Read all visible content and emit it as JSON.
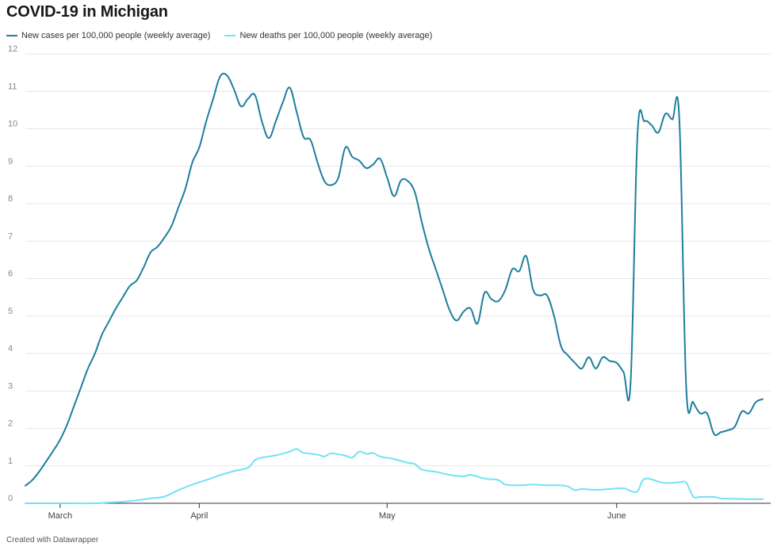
{
  "title": "COVID-19 in Michigan",
  "credit": "Created with Datawrapper",
  "chart_data": {
    "type": "line",
    "title": "COVID-19 in Michigan",
    "xlabel": "",
    "ylabel": "",
    "ylim": [
      0,
      12
    ],
    "yticks": [
      0,
      1,
      2,
      3,
      4,
      5,
      6,
      7,
      8,
      9,
      10,
      11,
      12
    ],
    "x_range": [
      0,
      101
    ],
    "xticks": [
      {
        "label": "March",
        "x": 5
      },
      {
        "label": "April",
        "x": 25
      },
      {
        "label": "May",
        "x": 52
      },
      {
        "label": "June",
        "x": 85
      }
    ],
    "grid": "horizontal",
    "legend": "top-left",
    "series": [
      {
        "name": "New cases per 100,000 people (weekly average)",
        "color": "#1d7f9c",
        "points": [
          [
            0,
            0.47
          ],
          [
            1,
            0.62
          ],
          [
            2,
            0.85
          ],
          [
            3,
            1.12
          ],
          [
            4,
            1.4
          ],
          [
            5,
            1.7
          ],
          [
            6,
            2.1
          ],
          [
            7,
            2.6
          ],
          [
            8,
            3.1
          ],
          [
            9,
            3.6
          ],
          [
            10,
            4.0
          ],
          [
            11,
            4.5
          ],
          [
            12,
            4.85
          ],
          [
            13,
            5.2
          ],
          [
            14,
            5.5
          ],
          [
            15,
            5.8
          ],
          [
            16,
            5.95
          ],
          [
            17,
            6.3
          ],
          [
            18,
            6.7
          ],
          [
            19,
            6.85
          ],
          [
            20,
            7.1
          ],
          [
            21,
            7.4
          ],
          [
            22,
            7.9
          ],
          [
            23,
            8.4
          ],
          [
            24,
            9.1
          ],
          [
            25,
            9.5
          ],
          [
            26,
            10.2
          ],
          [
            27,
            10.8
          ],
          [
            28,
            11.4
          ],
          [
            29,
            11.42
          ],
          [
            30,
            11.05
          ],
          [
            31,
            10.6
          ],
          [
            32,
            10.8
          ],
          [
            33,
            10.9
          ],
          [
            34,
            10.2
          ],
          [
            35,
            9.75
          ],
          [
            36,
            10.2
          ],
          [
            37,
            10.7
          ],
          [
            38,
            11.1
          ],
          [
            39,
            10.45
          ],
          [
            40,
            9.78
          ],
          [
            41,
            9.7
          ],
          [
            42,
            9.1
          ],
          [
            43,
            8.6
          ],
          [
            44,
            8.5
          ],
          [
            45,
            8.7
          ],
          [
            46,
            9.5
          ],
          [
            47,
            9.25
          ],
          [
            48,
            9.15
          ],
          [
            49,
            8.95
          ],
          [
            50,
            9.05
          ],
          [
            51,
            9.2
          ],
          [
            52,
            8.7
          ],
          [
            53,
            8.2
          ],
          [
            54,
            8.62
          ],
          [
            55,
            8.6
          ],
          [
            56,
            8.3
          ],
          [
            57,
            7.5
          ],
          [
            58,
            6.8
          ],
          [
            59,
            6.25
          ],
          [
            60,
            5.7
          ],
          [
            61,
            5.15
          ],
          [
            62,
            4.88
          ],
          [
            63,
            5.12
          ],
          [
            64,
            5.2
          ],
          [
            65,
            4.8
          ],
          [
            66,
            5.62
          ],
          [
            67,
            5.45
          ],
          [
            68,
            5.4
          ],
          [
            69,
            5.7
          ],
          [
            70,
            6.25
          ],
          [
            71,
            6.2
          ],
          [
            72,
            6.6
          ],
          [
            73,
            5.7
          ],
          [
            74,
            5.55
          ],
          [
            75,
            5.55
          ],
          [
            76,
            5.0
          ],
          [
            77,
            4.2
          ],
          [
            78,
            3.95
          ],
          [
            79,
            3.75
          ],
          [
            80,
            3.6
          ],
          [
            81,
            3.9
          ],
          [
            82,
            3.6
          ],
          [
            83,
            3.9
          ],
          [
            84,
            3.8
          ],
          [
            85,
            3.75
          ],
          [
            86,
            3.5
          ],
          [
            87,
            3.2
          ],
          [
            88,
            9.85
          ],
          [
            89,
            10.2
          ],
          [
            90,
            10.1
          ],
          [
            91,
            9.9
          ],
          [
            92,
            10.4
          ],
          [
            93,
            10.25
          ],
          [
            94,
            10.3
          ],
          [
            95,
            3.1
          ],
          [
            96,
            2.7
          ],
          [
            97,
            2.4
          ],
          [
            98,
            2.4
          ],
          [
            99,
            1.85
          ],
          [
            100,
            1.9
          ],
          [
            101,
            1.95
          ],
          [
            102,
            2.05
          ],
          [
            103,
            2.45
          ],
          [
            104,
            2.4
          ],
          [
            105,
            2.7
          ],
          [
            106,
            2.78
          ]
        ]
      },
      {
        "name": "New deaths per 100,000 people (weekly average)",
        "color": "#72e2f5",
        "points": [
          [
            0,
            0.0
          ],
          [
            5,
            0.0
          ],
          [
            10,
            0.0
          ],
          [
            12,
            0.02
          ],
          [
            14,
            0.04
          ],
          [
            16,
            0.08
          ],
          [
            18,
            0.13
          ],
          [
            20,
            0.18
          ],
          [
            22,
            0.35
          ],
          [
            24,
            0.5
          ],
          [
            26,
            0.62
          ],
          [
            28,
            0.75
          ],
          [
            30,
            0.86
          ],
          [
            32,
            0.95
          ],
          [
            33,
            1.15
          ],
          [
            34,
            1.22
          ],
          [
            36,
            1.28
          ],
          [
            38,
            1.38
          ],
          [
            39,
            1.45
          ],
          [
            40,
            1.35
          ],
          [
            42,
            1.3
          ],
          [
            43,
            1.25
          ],
          [
            44,
            1.33
          ],
          [
            46,
            1.27
          ],
          [
            47,
            1.22
          ],
          [
            48,
            1.38
          ],
          [
            49,
            1.32
          ],
          [
            50,
            1.34
          ],
          [
            51,
            1.25
          ],
          [
            53,
            1.18
          ],
          [
            55,
            1.08
          ],
          [
            56,
            1.05
          ],
          [
            57,
            0.9
          ],
          [
            59,
            0.84
          ],
          [
            61,
            0.76
          ],
          [
            63,
            0.72
          ],
          [
            64,
            0.76
          ],
          [
            66,
            0.66
          ],
          [
            68,
            0.62
          ],
          [
            69,
            0.5
          ],
          [
            71,
            0.48
          ],
          [
            73,
            0.5
          ],
          [
            75,
            0.48
          ],
          [
            77,
            0.48
          ],
          [
            78,
            0.45
          ],
          [
            79,
            0.35
          ],
          [
            80,
            0.38
          ],
          [
            82,
            0.36
          ],
          [
            84,
            0.38
          ],
          [
            86,
            0.4
          ],
          [
            87,
            0.33
          ],
          [
            88,
            0.32
          ],
          [
            89,
            0.65
          ],
          [
            91,
            0.58
          ],
          [
            92,
            0.54
          ],
          [
            94,
            0.56
          ],
          [
            95,
            0.55
          ],
          [
            96,
            0.18
          ],
          [
            97,
            0.17
          ],
          [
            99,
            0.17
          ],
          [
            100,
            0.13
          ],
          [
            102,
            0.12
          ],
          [
            104,
            0.11
          ],
          [
            106,
            0.11
          ]
        ]
      }
    ]
  }
}
